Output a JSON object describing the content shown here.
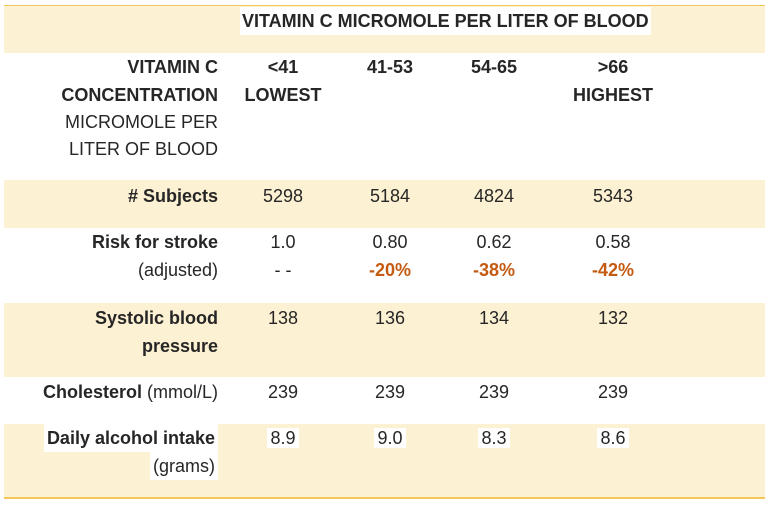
{
  "table": {
    "title": "VITAMIN C MICROMOLE PER LITER OF BLOOD",
    "header": {
      "label_line1": "VITAMIN C",
      "label_line2": "CONCENTRATION",
      "label_line3": "MICROMOLE PER",
      "label_line4": "LITER OF BLOOD",
      "columns": [
        {
          "line1": "<41",
          "line2": "LOWEST"
        },
        {
          "line1": "41-53",
          "line2": ""
        },
        {
          "line1": "54-65",
          "line2": ""
        },
        {
          "line1": ">66",
          "line2": "HIGHEST"
        }
      ]
    },
    "rows": {
      "subjects": {
        "label": "# Subjects",
        "values": [
          "5298",
          "5184",
          "4824",
          "5343"
        ]
      },
      "stroke": {
        "label_bold": "Risk for stroke",
        "label_sub": "(adjusted)",
        "values": [
          "1.0",
          "0.80",
          "0.62",
          "0.58"
        ],
        "changes": [
          "- -",
          "-20%",
          "-38%",
          "-42%"
        ]
      },
      "systolic": {
        "label_line1": "Systolic blood",
        "label_line2": "pressure",
        "values": [
          "138",
          "136",
          "134",
          "132"
        ]
      },
      "cholesterol": {
        "label_bold": "Cholesterol",
        "label_unit": "(mmol/L)",
        "values": [
          "239",
          "239",
          "239",
          "239"
        ]
      },
      "alcohol": {
        "label_bold": "Daily alcohol intake",
        "label_sub": "(grams)",
        "values": [
          "8.9",
          "9.0",
          "8.3",
          "8.6"
        ]
      }
    },
    "colors": {
      "band": "#fdf1d3",
      "border": "#f4c75a",
      "percent_text": "#c55a11"
    }
  }
}
